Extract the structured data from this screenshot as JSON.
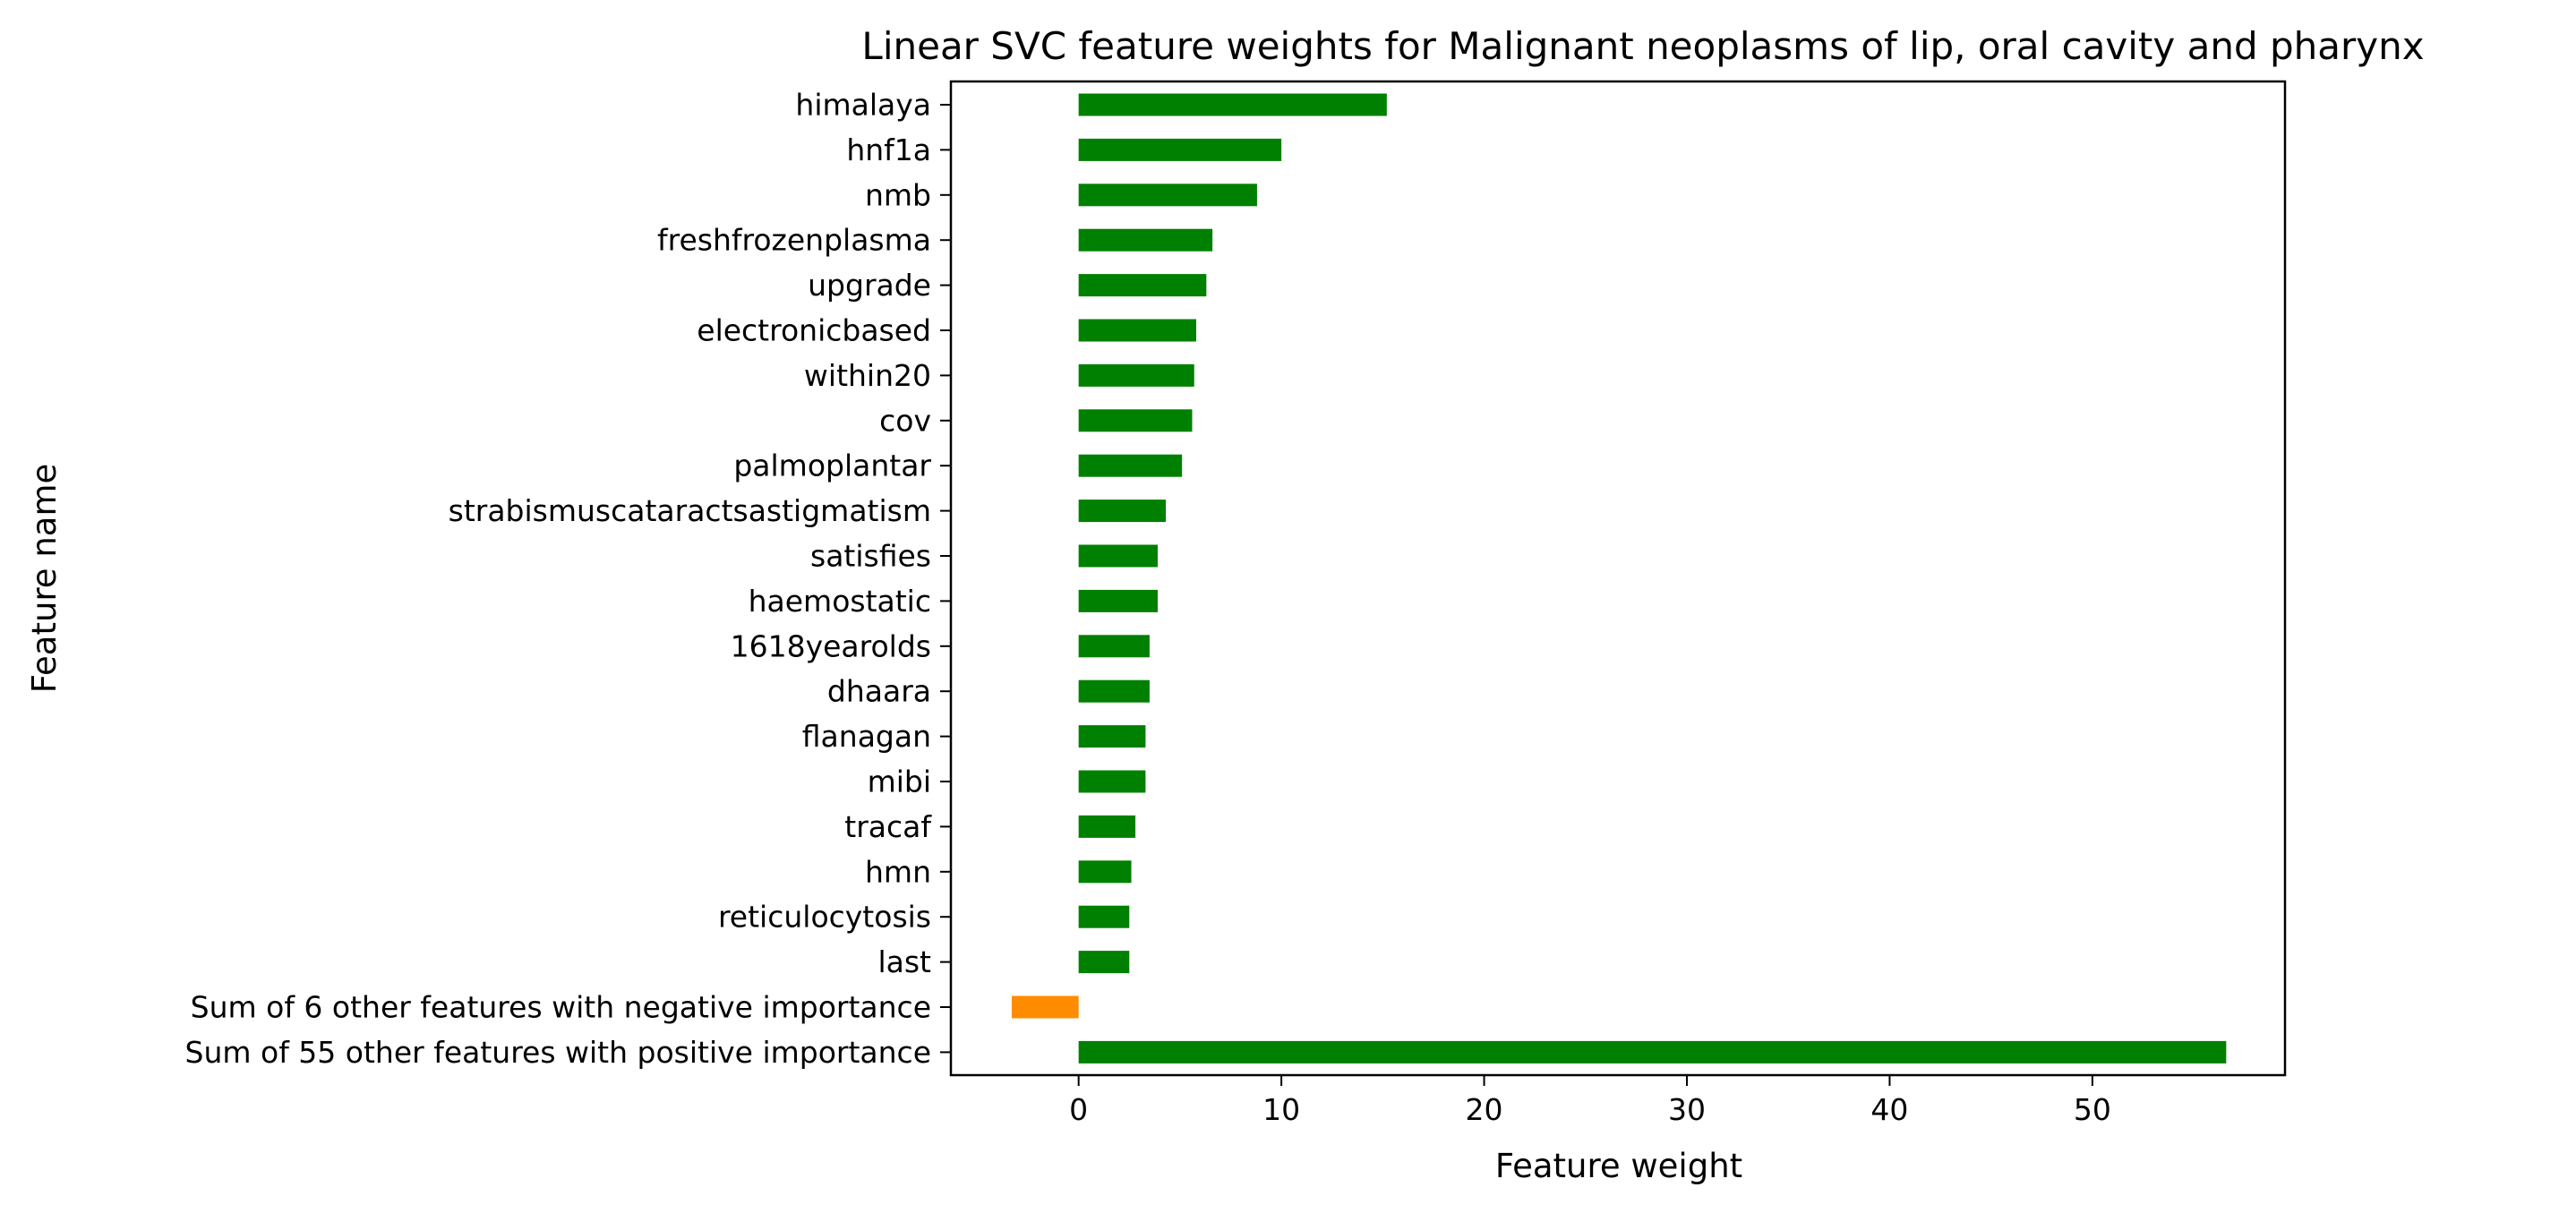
{
  "chart_data": {
    "type": "bar",
    "orientation": "horizontal",
    "title": "Linear SVC feature weights for Malignant neoplasms of lip, oral cavity and pharynx",
    "xlabel": "Feature weight",
    "ylabel": "Feature name",
    "xlim": [
      -6.3,
      59.5
    ],
    "xticks": [
      0,
      10,
      20,
      30,
      40,
      50
    ],
    "grid": false,
    "legend": "none",
    "colors": {
      "positive": "#008000",
      "negative": "#ff8c00",
      "axis": "#000000"
    },
    "categories": [
      "himalaya",
      "hnf1a",
      "nmb",
      "freshfrozenplasma",
      "upgrade",
      "electronicbased",
      "within20",
      "cov",
      "palmoplantar",
      "strabismuscataractsastigmatism",
      "satisfies",
      "haemostatic",
      "1618yearolds",
      "dhaara",
      "flanagan",
      "mibi",
      "tracaf",
      "hmn",
      "reticulocytosis",
      "last",
      "Sum of 6 other features with negative importance",
      "Sum of 55 other features with positive importance"
    ],
    "values": [
      15.2,
      10.0,
      8.8,
      6.6,
      6.3,
      5.8,
      5.7,
      5.6,
      5.1,
      4.3,
      3.9,
      3.9,
      3.5,
      3.5,
      3.3,
      3.3,
      2.8,
      2.6,
      2.5,
      2.5,
      -3.3,
      56.6
    ]
  }
}
